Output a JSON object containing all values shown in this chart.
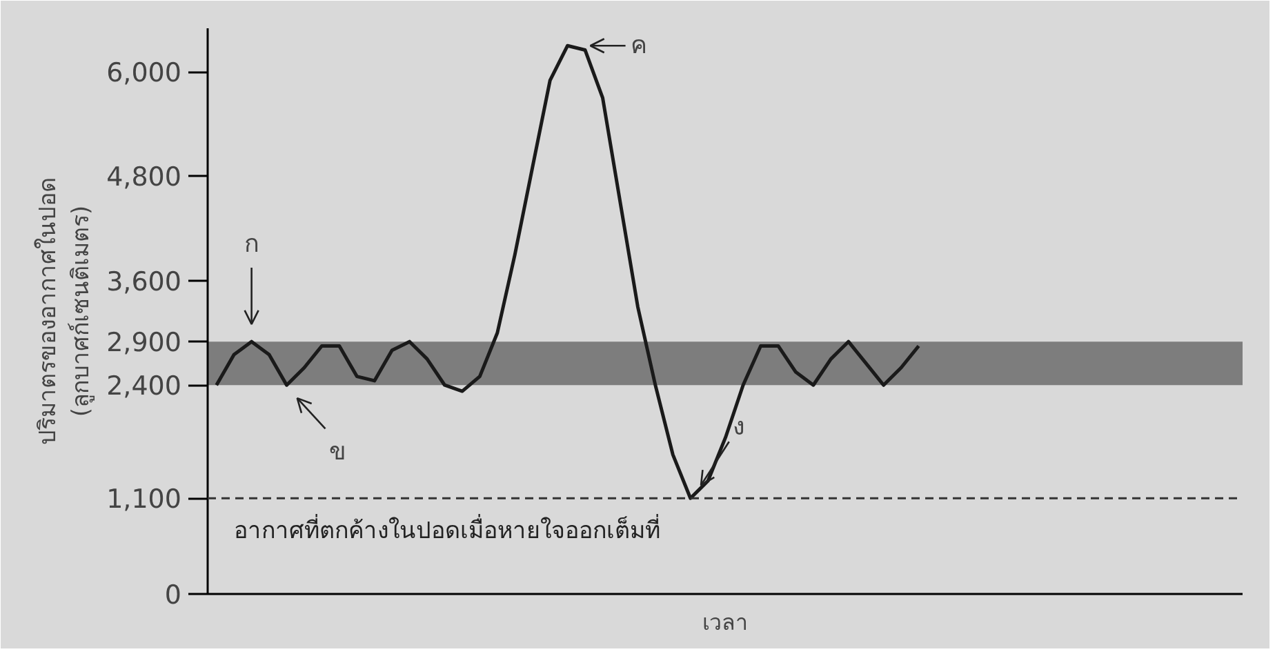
{
  "chart_data": {
    "type": "line",
    "xlabel": "เวลา",
    "ylabel": "ปริมาตรของอากาศในปอด\n(ลูกบาศก์เซนติเมตร)",
    "categories": [
      null,
      null,
      null,
      null,
      null,
      null,
      null,
      null,
      null,
      null,
      null,
      null,
      null,
      null,
      null,
      null,
      null,
      null,
      null,
      null,
      null,
      null,
      null,
      null,
      null,
      null,
      null,
      null,
      null,
      null,
      null,
      null,
      null,
      null,
      null,
      null,
      null,
      null,
      null,
      null,
      null
    ],
    "series": [
      {
        "color": "#1a1a1a",
        "values": [
          2400,
          2750,
          2900,
          2750,
          2400,
          2600,
          2850,
          2850,
          2500,
          2450,
          2800,
          2900,
          2700,
          2400,
          2330,
          2500,
          3000,
          3900,
          4900,
          5900,
          6300,
          6250,
          5700,
          4500,
          3300,
          2400,
          1600,
          1100,
          1300,
          1800,
          2400,
          2850,
          2850,
          2550,
          2400,
          2700,
          2900,
          2650,
          2400,
          2600,
          2850
        ]
      }
    ],
    "ylim": [
      0,
      6500
    ],
    "yticks": [
      0,
      {
        "value": 1100,
        "label": "1,100"
      },
      {
        "value": 2400,
        "label": "2,400"
      },
      {
        "value": 2900,
        "label": "2,900"
      },
      {
        "value": 3600,
        "label": "3,600"
      },
      {
        "value": 4800,
        "label": "4,800"
      },
      {
        "value": 6000,
        "label": "6,000"
      }
    ],
    "bands": [
      {
        "axis": "y",
        "from": 2400,
        "to": 2900,
        "color": "#7d7d7d"
      }
    ],
    "ref_lines": [
      {
        "axis": "y",
        "value": 1100,
        "label": "อากาศที่ตกค้างในปอดเมื่อหายใจออกเต็มที่",
        "line_style": "dashed",
        "color": "#333333"
      }
    ],
    "annotations": [
      "ก",
      "ข",
      "ค",
      "ง"
    ],
    "tick_labels": "y",
    "marker": "none",
    "line_style": "solid"
  }
}
